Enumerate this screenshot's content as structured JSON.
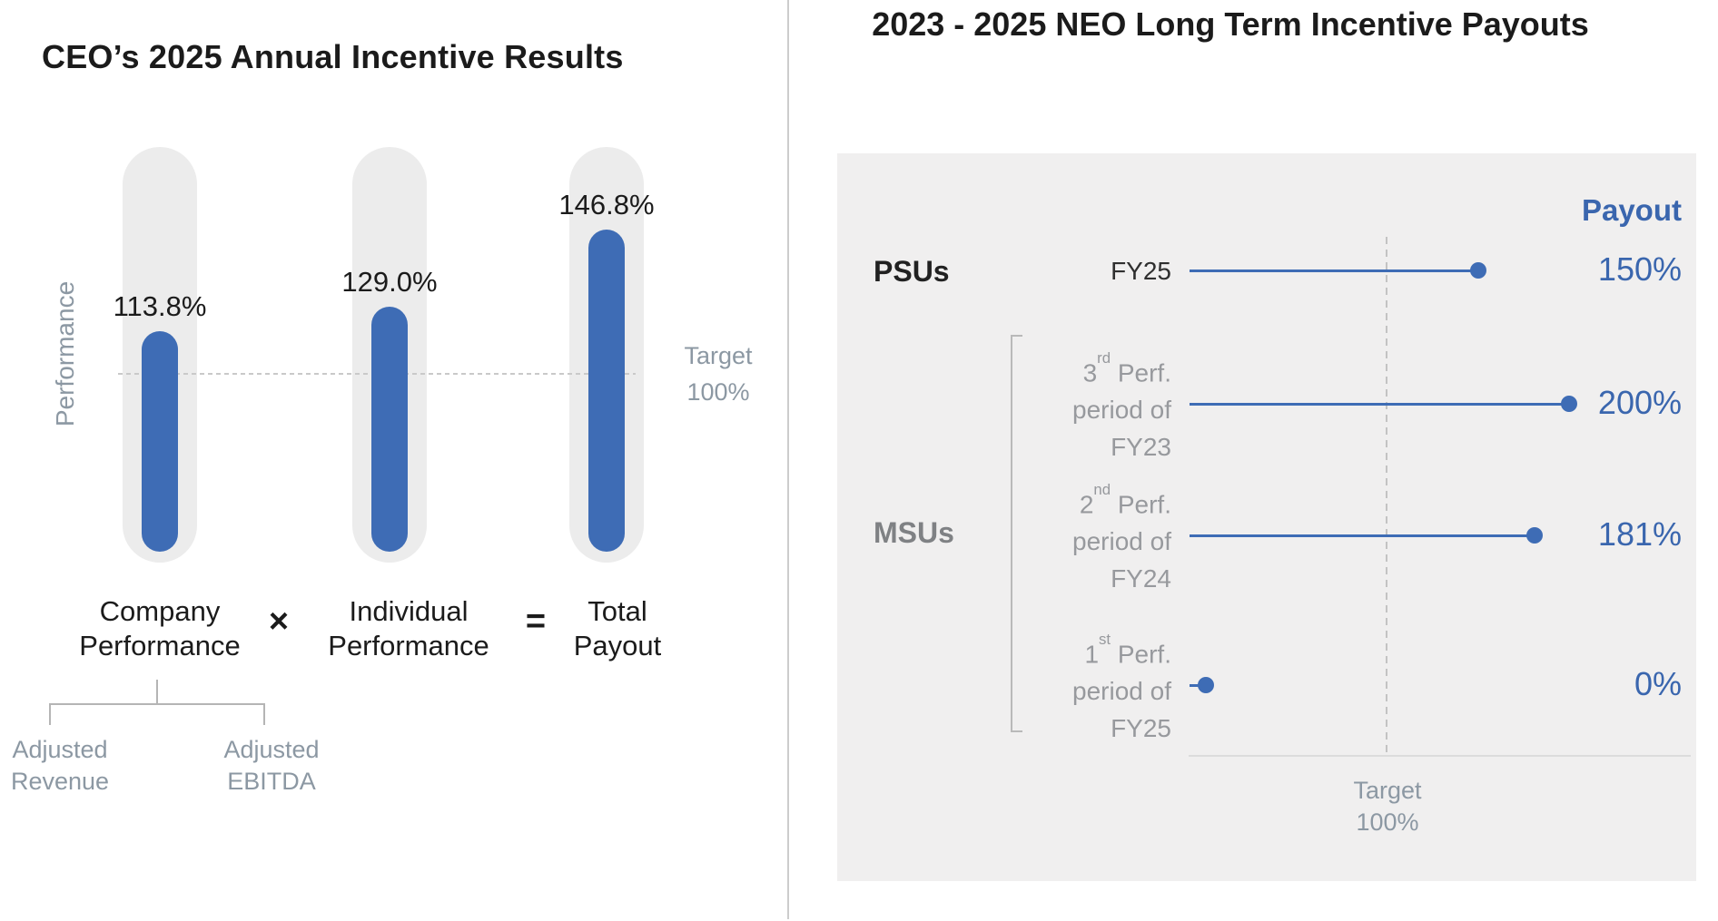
{
  "left_panel": {
    "title": "CEO’s 2025 Annual Incentive Results",
    "y_axis_label": "Performance",
    "target_line1": "Target",
    "target_line2": "100%",
    "bars": [
      {
        "value_label": "113.8%",
        "line1": "Company",
        "line2": "Performance"
      },
      {
        "value_label": "129.0%",
        "line1": "Individual",
        "line2": "Performance"
      },
      {
        "value_label": "146.8%",
        "line1": "Total",
        "line2": "Payout"
      }
    ],
    "multiply_sign": "×",
    "equals_sign": "=",
    "metric_labels": [
      {
        "line1": "Adjusted",
        "line2": "Revenue"
      },
      {
        "line1": "Adjusted",
        "line2": "EBITDA"
      }
    ]
  },
  "right_panel": {
    "title": "2023 - 2025 NEO Long Term Incentive Payouts",
    "payout_header": "Payout",
    "group_psu": "PSUs",
    "group_msu": "MSUs",
    "target_line1": "Target",
    "target_line2": "100%"
  },
  "chart_data": [
    {
      "type": "bar",
      "title": "CEO’s 2025 Annual Incentive Results",
      "categories": [
        "Company Performance",
        "Individual Performance",
        "Total Payout"
      ],
      "values": [
        113.8,
        129.0,
        146.8
      ],
      "value_labels": [
        "113.8%",
        "129.0%",
        "146.8%"
      ],
      "xlabel": "",
      "ylabel": "Performance",
      "target_line": {
        "value": 100,
        "label": "Target 100%"
      },
      "annotations": [
        "Company Performance × Individual Performance = Total Payout",
        "Company Performance components: Adjusted Revenue, Adjusted EBITDA"
      ],
      "legend": "none",
      "grid": false
    },
    {
      "type": "scatter",
      "subtype": "horizontal-lollipop",
      "title": "2023 - 2025 NEO Long Term Incentive Payouts",
      "xlabel": "Payout",
      "xlim": [
        0,
        200
      ],
      "target_line": {
        "value": 100,
        "label": "Target 100%"
      },
      "rows": [
        {
          "group": "PSUs",
          "label": "FY25",
          "label_lines": [
            {
              "text": "FY25"
            }
          ],
          "value": 150,
          "value_label": "150%"
        },
        {
          "group": "MSUs",
          "label": "3rd Perf. period of FY23",
          "label_lines": [
            {
              "pre": "3",
              "sup": "rd",
              "post": " Perf."
            },
            {
              "text": "period of"
            },
            {
              "text": "FY23"
            }
          ],
          "value": 200,
          "value_label": "200%"
        },
        {
          "group": "MSUs",
          "label": "2nd Perf. period of FY24",
          "label_lines": [
            {
              "pre": "2",
              "sup": "nd",
              "post": " Perf."
            },
            {
              "text": "period of"
            },
            {
              "text": "FY24"
            }
          ],
          "value": 181,
          "value_label": "181%"
        },
        {
          "group": "MSUs",
          "label": "1st Perf. period of FY25",
          "label_lines": [
            {
              "pre": "1",
              "sup": "st",
              "post": " Perf."
            },
            {
              "text": "period of"
            },
            {
              "text": "FY25"
            }
          ],
          "value": 0,
          "value_label": "0%"
        }
      ],
      "legend": "none",
      "grid": false
    }
  ],
  "colors": {
    "bar_blue": "#3e6cb5",
    "value_blue": "#3a66ae",
    "panel_gray": "#f0efef",
    "track_gray": "#ececec",
    "muted_text": "#8c98a3",
    "msu_label_gray": "#97999d",
    "black_text": "#1b1b1b"
  }
}
